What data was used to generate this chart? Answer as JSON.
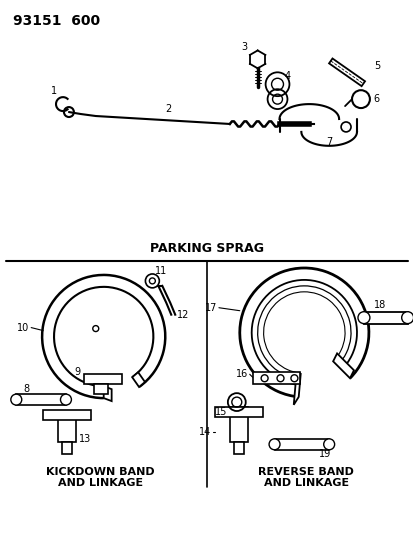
{
  "title": "93151  600",
  "background_color": "#ffffff",
  "line_color": "#000000",
  "text_color": "#000000",
  "parking_sprag_label": "PARKING SPRAG",
  "kickdown_label": "KICKDOWN BAND\nAND LINKAGE",
  "reverse_label": "REVERSE BAND\nAND LINKAGE",
  "figsize": [
    4.14,
    5.33
  ],
  "dpi": 100
}
